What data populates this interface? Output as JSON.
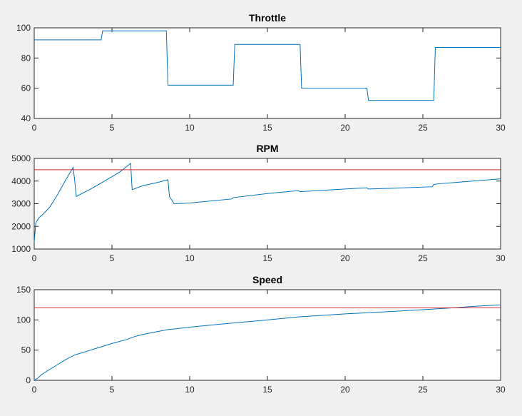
{
  "chart_data": [
    {
      "type": "line",
      "title": "Throttle",
      "xlabel": "",
      "ylabel": "",
      "xlim": [
        0,
        30
      ],
      "ylim": [
        40,
        100
      ],
      "xticks": [
        0,
        5,
        10,
        15,
        20,
        25,
        30
      ],
      "yticks": [
        40,
        60,
        80,
        100
      ],
      "grid": false,
      "series": [
        {
          "color": "#0072bd",
          "x": [
            0,
            4.3,
            4.4,
            8.5,
            8.6,
            12.8,
            12.9,
            17.1,
            17.2,
            21.4,
            21.5,
            25.7,
            25.8,
            30
          ],
          "y": [
            92,
            92,
            98,
            98,
            62,
            62,
            89,
            89,
            60,
            60,
            52,
            52,
            87,
            87
          ]
        }
      ]
    },
    {
      "type": "line",
      "title": "RPM",
      "xlabel": "",
      "ylabel": "",
      "xlim": [
        0,
        30
      ],
      "ylim": [
        1000,
        5000
      ],
      "xticks": [
        0,
        5,
        10,
        15,
        20,
        25,
        30
      ],
      "yticks": [
        1000,
        2000,
        3000,
        4000,
        5000
      ],
      "grid": false,
      "series": [
        {
          "color": "#0072bd",
          "x": [
            0,
            0.1,
            0.3,
            0.6,
            1.0,
            1.5,
            2.0,
            2.5,
            2.6,
            2.7,
            3.5,
            4.5,
            5.5,
            6.2,
            6.3,
            7.0,
            8.0,
            8.6,
            8.7,
            9.0,
            10.0,
            12.7,
            12.8,
            15.0,
            17.0,
            17.1,
            20.0,
            21.4,
            21.5,
            23.0,
            25.6,
            25.7,
            26.0,
            28.0,
            30.0
          ],
          "y": [
            1300,
            2150,
            2380,
            2560,
            2850,
            3400,
            4020,
            4600,
            4050,
            3320,
            3600,
            3990,
            4400,
            4780,
            3620,
            3800,
            3950,
            4060,
            3320,
            3000,
            3030,
            3210,
            3270,
            3450,
            3580,
            3530,
            3650,
            3700,
            3650,
            3680,
            3750,
            3850,
            3880,
            3990,
            4100
          ]
        },
        {
          "color": "#d62728",
          "x": [
            0,
            30
          ],
          "y": [
            4500,
            4500
          ]
        }
      ]
    },
    {
      "type": "line",
      "title": "Speed",
      "xlabel": "",
      "ylabel": "",
      "xlim": [
        0,
        30
      ],
      "ylim": [
        0,
        150
      ],
      "xticks": [
        0,
        5,
        10,
        15,
        20,
        25,
        30
      ],
      "yticks": [
        0,
        50,
        100,
        150
      ],
      "grid": false,
      "series": [
        {
          "color": "#0072bd",
          "x": [
            0,
            0.2,
            0.5,
            1.0,
            1.5,
            2.0,
            2.6,
            3.0,
            4.0,
            5.0,
            6.0,
            6.4,
            7.0,
            8.0,
            8.6,
            9.0,
            10.0,
            12.0,
            15.0,
            17.0,
            20.0,
            23.0,
            25.0,
            27.0,
            28.0,
            30.0
          ],
          "y": [
            0,
            3,
            10,
            18,
            26,
            34,
            42,
            45,
            53,
            61,
            68,
            72,
            76,
            81,
            84,
            85,
            88,
            93,
            100,
            105,
            110,
            114,
            117,
            120,
            122,
            125
          ]
        },
        {
          "color": "#d62728",
          "x": [
            0,
            30
          ],
          "y": [
            120,
            120
          ]
        }
      ]
    }
  ]
}
